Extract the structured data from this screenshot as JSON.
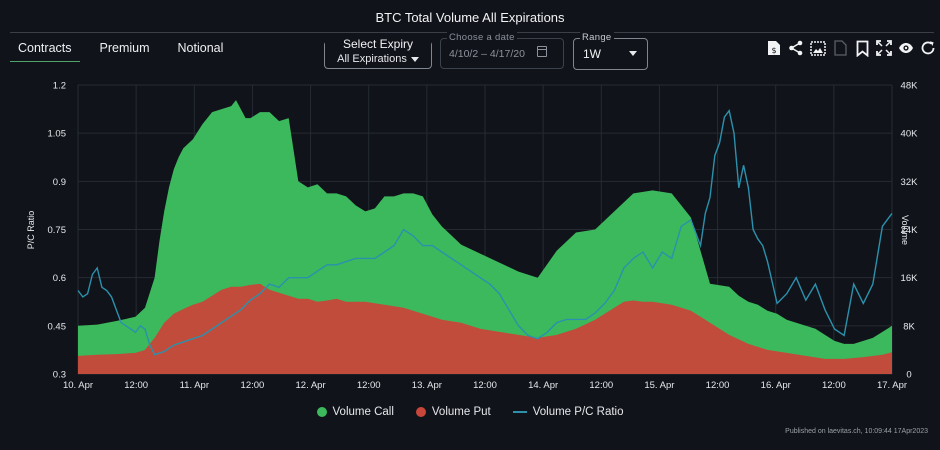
{
  "header": {
    "title": "BTC Total Volume All Expirations"
  },
  "tabs": [
    {
      "label": "Contracts",
      "active": true
    },
    {
      "label": "Premium",
      "active": false
    },
    {
      "label": "Notional",
      "active": false
    }
  ],
  "controls": {
    "expiry_label": "Select Expiry",
    "expiry_value": "All Expirations",
    "date_legend": "Choose a date",
    "date_start": "4/10/2",
    "date_sep": "–",
    "date_end": "4/17/20",
    "range_legend": "Range",
    "range_value": "1W"
  },
  "toolbar": [
    "invoice-icon",
    "share-icon",
    "image-icon",
    "document-icon",
    "bookmark-icon",
    "fullscreen-icon",
    "eye-icon",
    "refresh-icon"
  ],
  "colors": {
    "call": "#3cb95c",
    "put": "#c8463a",
    "ratio": "#2b91ad",
    "background": "#101319"
  },
  "chart_data": {
    "type": "area",
    "title": "BTC Total Volume All Expirations",
    "x_unit": "hours since 10 Apr 00:00",
    "x_ticks": [
      "10. Apr",
      "12:00",
      "11. Apr",
      "12:00",
      "12. Apr",
      "12:00",
      "13. Apr",
      "12:00",
      "14. Apr",
      "12:00",
      "15. Apr",
      "12:00",
      "16. Apr",
      "12:00",
      "17. Apr"
    ],
    "xlim": [
      0,
      170
    ],
    "ylabel_left": "P/C Ratio",
    "ylim_left": [
      0.3,
      1.2
    ],
    "yticks_left": [
      "1.2",
      "1.05",
      "0.9",
      "0.75",
      "0.6",
      "0.45",
      "0.3"
    ],
    "ylabel_right": "Volume",
    "ylim_right": [
      0,
      48000
    ],
    "yticks_right": [
      "48K",
      "40K",
      "32K",
      "24K",
      "16K",
      "8K",
      "0"
    ],
    "series": [
      {
        "name": "Volume Call",
        "kind": "area",
        "axis": "right",
        "x": [
          0,
          4,
          8,
          12,
          14,
          16,
          17,
          18,
          19,
          20,
          21,
          22,
          24,
          26,
          28,
          30,
          32,
          33,
          34,
          35,
          36,
          38,
          40,
          42,
          44,
          46,
          48,
          50,
          52,
          54,
          56,
          58,
          60,
          62,
          64,
          66,
          68,
          70,
          72,
          74,
          76,
          78,
          80,
          84,
          88,
          92,
          96,
          100,
          104,
          108,
          112,
          116,
          120,
          124,
          128,
          132,
          136,
          138,
          140,
          142,
          144,
          146,
          148,
          150,
          152,
          154,
          156,
          158,
          160,
          162,
          164,
          166,
          168,
          170
        ],
        "y": [
          8000,
          8200,
          8800,
          9500,
          11000,
          16000,
          22000,
          27000,
          31000,
          34000,
          36000,
          37500,
          39000,
          41500,
          43500,
          44000,
          44500,
          45500,
          44000,
          42500,
          42500,
          43500,
          43500,
          42000,
          42500,
          32000,
          31000,
          31500,
          30000,
          30000,
          29500,
          28000,
          27000,
          27500,
          29500,
          29500,
          30000,
          30000,
          29500,
          26500,
          24500,
          23000,
          21500,
          20000,
          18500,
          17000,
          16000,
          20500,
          23500,
          24000,
          27000,
          30000,
          30500,
          30000,
          26000,
          15000,
          14500,
          13000,
          12000,
          11500,
          10500,
          10000,
          9000,
          8500,
          8000,
          7500,
          6500,
          5500,
          5000,
          5000,
          5500,
          6000,
          7000,
          8000
        ]
      },
      {
        "name": "Volume Put",
        "kind": "area",
        "axis": "right",
        "x": [
          0,
          4,
          8,
          12,
          14,
          16,
          18,
          20,
          22,
          24,
          26,
          28,
          30,
          32,
          34,
          36,
          38,
          40,
          42,
          44,
          46,
          48,
          50,
          52,
          54,
          56,
          60,
          64,
          68,
          72,
          76,
          80,
          84,
          88,
          92,
          96,
          100,
          104,
          108,
          112,
          114,
          116,
          118,
          120,
          124,
          128,
          130,
          132,
          136,
          140,
          144,
          148,
          152,
          156,
          160,
          164,
          168,
          170
        ],
        "y": [
          3000,
          3200,
          3300,
          3500,
          4000,
          6000,
          8500,
          10000,
          10800,
          11500,
          12000,
          13000,
          14000,
          14500,
          14500,
          14800,
          15000,
          14000,
          13500,
          13000,
          12500,
          12500,
          12000,
          12200,
          12500,
          12000,
          12000,
          11500,
          11000,
          10000,
          9000,
          8500,
          7500,
          7000,
          6500,
          6000,
          6500,
          7500,
          9000,
          11000,
          12000,
          12200,
          12000,
          12000,
          11500,
          10500,
          9500,
          8500,
          6500,
          5000,
          4000,
          3500,
          3000,
          2500,
          2500,
          2800,
          3200,
          3600
        ]
      },
      {
        "name": "Volume P/C Ratio",
        "kind": "line",
        "axis": "left",
        "x": [
          0,
          1,
          2,
          3,
          4,
          5,
          6,
          7,
          8,
          9,
          10,
          11,
          12,
          13,
          14,
          15,
          16,
          18,
          20,
          22,
          24,
          26,
          28,
          30,
          32,
          34,
          36,
          38,
          40,
          42,
          44,
          46,
          48,
          50,
          52,
          54,
          56,
          58,
          60,
          62,
          64,
          66,
          68,
          70,
          72,
          74,
          76,
          78,
          80,
          82,
          84,
          86,
          88,
          90,
          92,
          94,
          96,
          98,
          100,
          102,
          104,
          106,
          108,
          110,
          112,
          114,
          116,
          118,
          120,
          122,
          124,
          126,
          128,
          130,
          131,
          132,
          133,
          134,
          135,
          136,
          137,
          138,
          139,
          140,
          141,
          142,
          143,
          144,
          146,
          148,
          150,
          152,
          154,
          156,
          158,
          160,
          162,
          164,
          166,
          168,
          170
        ],
        "y": [
          0.56,
          0.54,
          0.55,
          0.61,
          0.63,
          0.57,
          0.56,
          0.54,
          0.5,
          0.46,
          0.45,
          0.44,
          0.43,
          0.45,
          0.44,
          0.39,
          0.36,
          0.37,
          0.39,
          0.4,
          0.41,
          0.42,
          0.44,
          0.46,
          0.48,
          0.5,
          0.53,
          0.55,
          0.58,
          0.57,
          0.6,
          0.6,
          0.6,
          0.62,
          0.64,
          0.64,
          0.65,
          0.66,
          0.66,
          0.66,
          0.68,
          0.7,
          0.75,
          0.73,
          0.7,
          0.7,
          0.68,
          0.66,
          0.64,
          0.62,
          0.6,
          0.58,
          0.55,
          0.5,
          0.45,
          0.42,
          0.41,
          0.43,
          0.46,
          0.47,
          0.47,
          0.47,
          0.49,
          0.52,
          0.56,
          0.63,
          0.66,
          0.68,
          0.63,
          0.68,
          0.66,
          0.76,
          0.78,
          0.7,
          0.8,
          0.85,
          0.98,
          1.02,
          1.1,
          1.12,
          1.05,
          0.88,
          0.95,
          0.88,
          0.75,
          0.72,
          0.7,
          0.65,
          0.52,
          0.55,
          0.6,
          0.53,
          0.58,
          0.5,
          0.44,
          0.42,
          0.58,
          0.52,
          0.58,
          0.76,
          0.8
        ]
      }
    ]
  },
  "legend": [
    {
      "label": "Volume Call",
      "type": "dot"
    },
    {
      "label": "Volume Put",
      "type": "dot"
    },
    {
      "label": "Volume P/C Ratio",
      "type": "line"
    }
  ],
  "footer": {
    "published": "Published on laevitas.ch, 10:09:44 17Apr2023"
  }
}
